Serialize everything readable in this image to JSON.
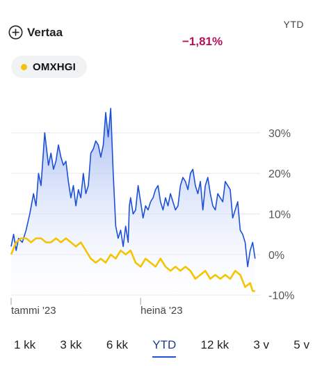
{
  "header": {
    "compare_label": "Vertaa",
    "period_label": "YTD",
    "change": "−1,81%"
  },
  "series_chip": {
    "label": "OMXHGI",
    "color": "#f5c400"
  },
  "colors": {
    "main_line": "#1a4fd6",
    "main_fill_top": "#9fb6f2",
    "compare_line": "#f5c400",
    "negative": "#b3125a"
  },
  "tabs": [
    {
      "label": "1 kk",
      "active": false
    },
    {
      "label": "3 kk",
      "active": false
    },
    {
      "label": "6 kk",
      "active": false
    },
    {
      "label": "YTD",
      "active": true
    },
    {
      "label": "12 kk",
      "active": false
    },
    {
      "label": "3 v",
      "active": false
    },
    {
      "label": "5 v",
      "active": false
    }
  ],
  "chart_data": {
    "type": "area",
    "y_tick_labels": [
      "30%",
      "20%",
      "10%",
      "0%",
      "-10%"
    ],
    "y_ticks": [
      30,
      20,
      10,
      0,
      -10
    ],
    "ylim": [
      -11,
      37
    ],
    "x_tick_labels": [
      "tammi '23",
      "heinä '23"
    ],
    "x_ticks": [
      0.0,
      0.52
    ],
    "grid": true,
    "series": [
      {
        "x": [
          0.0,
          0.01,
          0.02,
          0.03,
          0.045,
          0.06,
          0.075,
          0.09,
          0.1,
          0.11,
          0.12,
          0.135,
          0.15,
          0.16,
          0.17,
          0.18,
          0.19,
          0.2,
          0.21,
          0.22,
          0.23,
          0.24,
          0.25,
          0.26,
          0.27,
          0.28,
          0.29,
          0.3,
          0.31,
          0.32,
          0.33,
          0.34,
          0.35,
          0.36,
          0.37,
          0.38,
          0.39,
          0.4,
          0.41,
          0.42,
          0.43,
          0.44,
          0.45,
          0.46,
          0.47,
          0.475,
          0.48,
          0.49,
          0.5,
          0.51,
          0.52,
          0.53,
          0.54,
          0.55,
          0.56,
          0.57,
          0.58,
          0.59,
          0.6,
          0.61,
          0.62,
          0.63,
          0.64,
          0.65,
          0.66,
          0.67,
          0.68,
          0.69,
          0.7,
          0.71,
          0.72,
          0.73,
          0.74,
          0.75,
          0.76,
          0.77,
          0.78,
          0.79,
          0.8,
          0.81,
          0.82,
          0.83,
          0.84,
          0.85,
          0.86,
          0.87,
          0.88,
          0.89,
          0.9,
          0.91,
          0.92,
          0.93,
          0.94,
          0.95,
          0.96,
          0.97,
          0.98
        ],
        "values": [
          2,
          5,
          1,
          4,
          3,
          6,
          10,
          15,
          12,
          20,
          17,
          30,
          22,
          25,
          21,
          23,
          27,
          24,
          22,
          23,
          18,
          14,
          17,
          12,
          16,
          14,
          20,
          15,
          17,
          25,
          26,
          28,
          27,
          24,
          27,
          35,
          29,
          36,
          20,
          7,
          4,
          6,
          2,
          7,
          3,
          12,
          14,
          10,
          11,
          17,
          13,
          9,
          12,
          11,
          13,
          14,
          16,
          17,
          13,
          11,
          14,
          12,
          15,
          13,
          11,
          12,
          17,
          19,
          18,
          16,
          20,
          21,
          17,
          15,
          18,
          11,
          17,
          19,
          15,
          12,
          11,
          15,
          14,
          13,
          18,
          17,
          16,
          9,
          11,
          13,
          6,
          5,
          3,
          -3,
          1,
          3,
          -1
        ],
        "name": ""
      },
      {
        "x": [
          0.0,
          0.02,
          0.04,
          0.06,
          0.08,
          0.1,
          0.12,
          0.14,
          0.16,
          0.18,
          0.2,
          0.22,
          0.24,
          0.26,
          0.28,
          0.3,
          0.32,
          0.34,
          0.36,
          0.38,
          0.4,
          0.42,
          0.44,
          0.46,
          0.48,
          0.5,
          0.52,
          0.54,
          0.56,
          0.58,
          0.6,
          0.62,
          0.64,
          0.66,
          0.68,
          0.7,
          0.72,
          0.74,
          0.76,
          0.78,
          0.8,
          0.82,
          0.84,
          0.86,
          0.88,
          0.9,
          0.92,
          0.94,
          0.96,
          0.97,
          0.98
        ],
        "values": [
          0,
          3,
          4,
          4,
          3,
          4,
          4,
          3,
          3,
          4,
          3,
          4,
          3,
          2,
          3,
          1,
          -1,
          -2,
          -1,
          -2,
          0,
          -1,
          1,
          0,
          1,
          -2,
          -3,
          -1,
          -2,
          -3,
          -1,
          -3,
          -4,
          -3,
          -4,
          -3,
          -4,
          -6,
          -5,
          -4,
          -6,
          -5,
          -6,
          -5,
          -6,
          -4,
          -5,
          -8,
          -7,
          -9,
          -9
        ],
        "name": ""
      }
    ]
  }
}
